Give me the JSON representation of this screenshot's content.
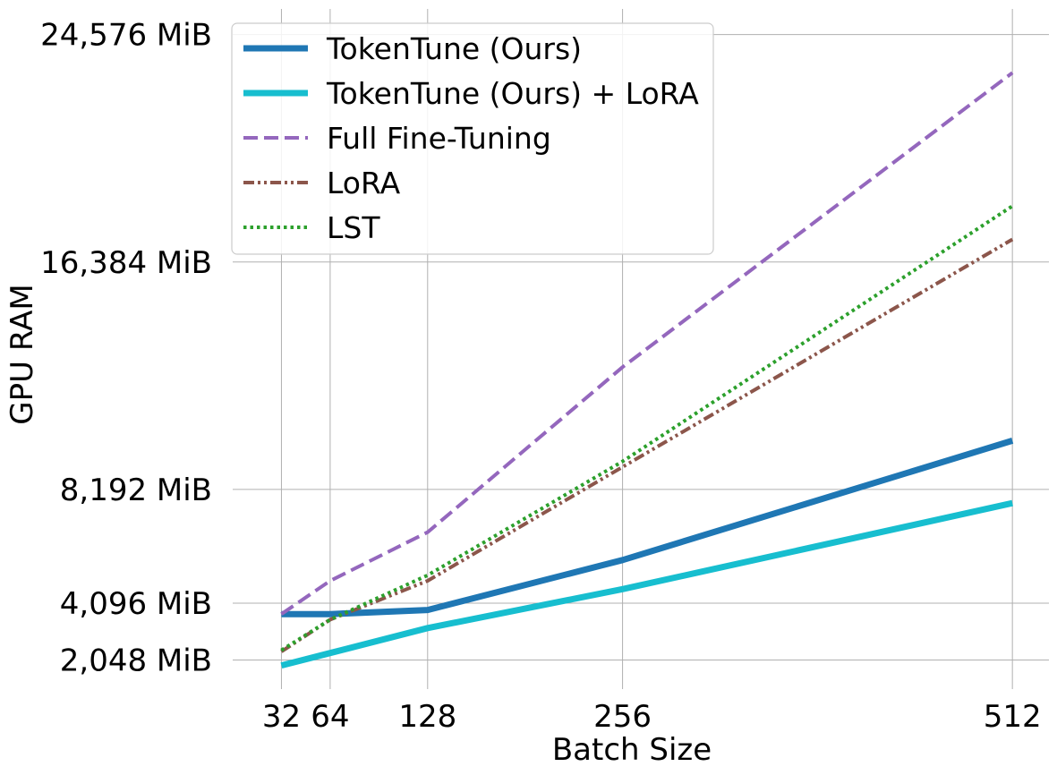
{
  "chart_data": {
    "type": "line",
    "title": "",
    "xlabel": "Batch Size",
    "ylabel": "GPU RAM",
    "x": [
      32,
      64,
      128,
      256,
      512
    ],
    "xticks": [
      32,
      64,
      128,
      256,
      512
    ],
    "xtick_labels": [
      "32",
      "64",
      "128",
      "256",
      "512"
    ],
    "xlim": [
      0,
      536
    ],
    "yticks": [
      2048,
      4096,
      8192,
      16384,
      24576
    ],
    "ytick_labels": [
      "2,048 MiB",
      "4,096 MiB",
      "8,192 MiB",
      "16,384 MiB",
      "24,576 MiB"
    ],
    "ylim": [
      1000,
      25500
    ],
    "grid": true,
    "legend_position": "top-left",
    "series": [
      {
        "name": "TokenTune (Ours)",
        "color": "#1f77b4",
        "style": "solid",
        "width": "thick",
        "values": [
          3700,
          3700,
          3850,
          5650,
          9950
        ]
      },
      {
        "name": "TokenTune (Ours) + LoRA",
        "color": "#17becf",
        "style": "solid",
        "width": "thick",
        "values": [
          1850,
          2300,
          3200,
          4600,
          7700
        ]
      },
      {
        "name": "Full Fine-Tuning",
        "color": "#9467bd",
        "style": "dashed",
        "width": "normal",
        "values": [
          3700,
          4900,
          6650,
          12600,
          23200
        ]
      },
      {
        "name": "LoRA",
        "color": "#8c564b",
        "style": "dashdot",
        "width": "normal",
        "values": [
          2350,
          3500,
          4900,
          9000,
          17200
        ]
      },
      {
        "name": "LST",
        "color": "#2ca02c",
        "style": "dotted",
        "width": "normal",
        "values": [
          2400,
          3500,
          5100,
          9200,
          18400
        ]
      }
    ]
  }
}
